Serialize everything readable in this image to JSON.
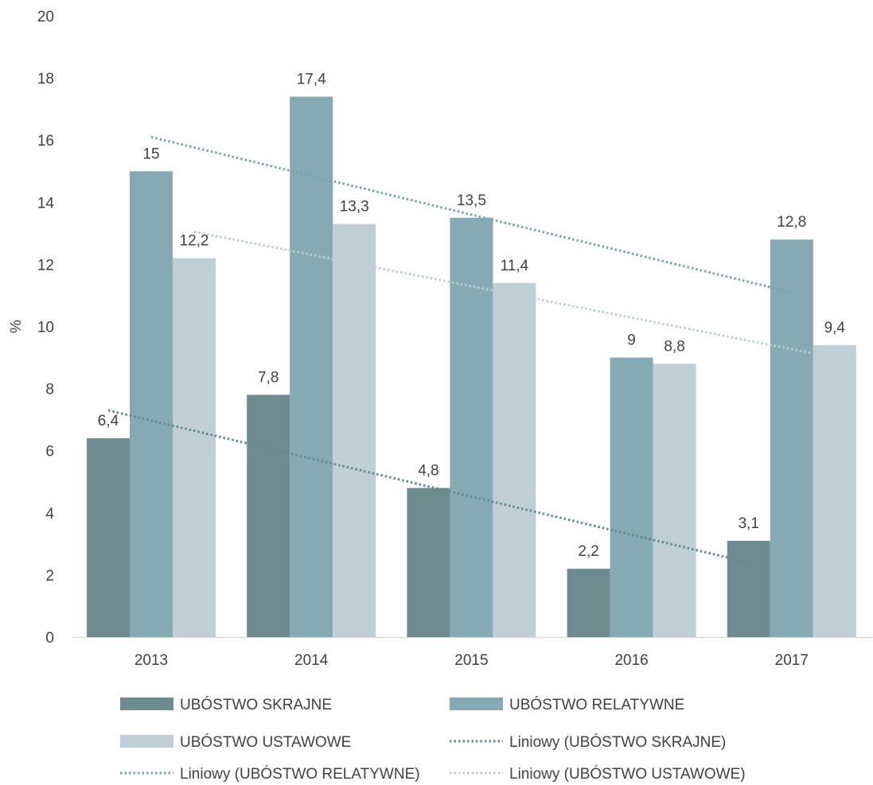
{
  "chart_data": {
    "type": "bar",
    "title": "",
    "xlabel": "",
    "ylabel": "%",
    "categories": [
      "2013",
      "2014",
      "2015",
      "2016",
      "2017"
    ],
    "ylim": [
      0,
      20
    ],
    "yticks": [
      0,
      2,
      4,
      6,
      8,
      10,
      12,
      14,
      16,
      18,
      20
    ],
    "grid": false,
    "legend_position": "bottom",
    "series": [
      {
        "name": "UBÓSTWO SKRAJNE",
        "color": "#6e8b90",
        "values": [
          6.4,
          7.8,
          4.8,
          2.2,
          3.1
        ],
        "labels": [
          "6,4",
          "7,8",
          "4,8",
          "2,2",
          "3,1"
        ]
      },
      {
        "name": "UBÓSTWO RELATYWNE",
        "color": "#85aab3",
        "values": [
          15,
          17.4,
          13.5,
          9,
          12.8
        ],
        "labels": [
          "15",
          "17,4",
          "13,5",
          "9",
          "12,8"
        ]
      },
      {
        "name": "UBÓSTWO USTAWOWE",
        "color": "#bfcfd5",
        "values": [
          12.2,
          13.3,
          11.4,
          8.8,
          9.4
        ],
        "labels": [
          "12,2",
          "13,3",
          "11,4",
          "8,8",
          "9,4"
        ]
      }
    ],
    "trendlines": [
      {
        "name": "Liniowy (UBÓSTWO SKRAJNE)",
        "series_index": 0,
        "color": "#5f8a91",
        "start": 7.3,
        "end": 2.4
      },
      {
        "name": "Liniowy (UBÓSTWO RELATYWNE)",
        "series_index": 1,
        "color": "#74a3ab",
        "start": 16.1,
        "end": 11.1
      },
      {
        "name": "Liniowy (UBÓSTWO USTAWOWE)",
        "series_index": 2,
        "color": "#b7d0d4",
        "start": 13.05,
        "end": 9.0
      }
    ]
  }
}
